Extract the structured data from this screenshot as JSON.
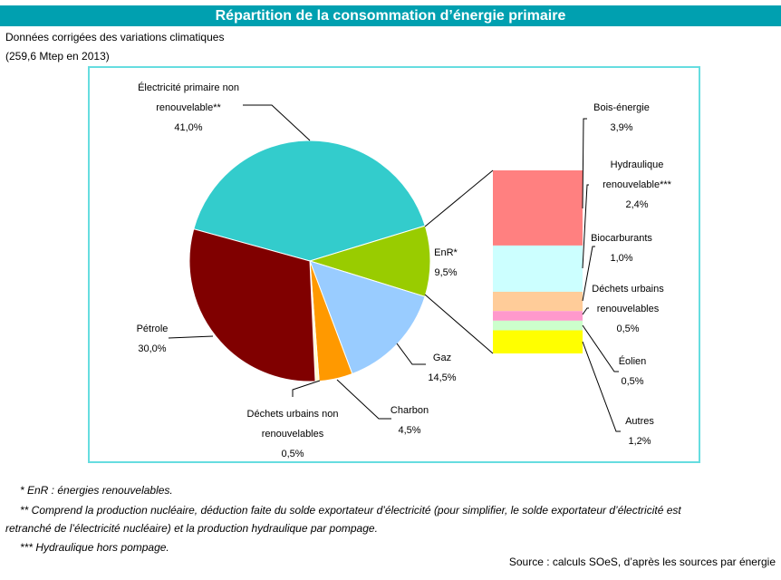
{
  "header": {
    "title": "Répartition de la consommation d’énergie primaire",
    "subtitle1": "Données corrigées des variations climatiques",
    "subtitle2": "(259,6 Mtep en 2013)"
  },
  "chart_data": [
    {
      "type": "pie",
      "unit": "%",
      "slices": [
        {
          "label": [
            "Électricité primaire non",
            "renouvelable**"
          ],
          "value_label": "41,0%",
          "value": 41.0,
          "color": "#33CCCC"
        },
        {
          "label": [
            "EnR*"
          ],
          "value_label": "9,5%",
          "value": 9.5,
          "color": "#99CC00"
        },
        {
          "label": [
            "Gaz"
          ],
          "value_label": "14,5%",
          "value": 14.5,
          "color": "#99CCFF"
        },
        {
          "label": [
            "Charbon"
          ],
          "value_label": "4,5%",
          "value": 4.5,
          "color": "#FF9900"
        },
        {
          "label": [
            "Déchets urbains non",
            "renouvelables"
          ],
          "value_label": "0,5%",
          "value": 0.5,
          "color": "#FFFFCC"
        },
        {
          "label": [
            "Pétrole"
          ],
          "value_label": "30,0%",
          "value": 30.0,
          "color": "#800000"
        }
      ]
    },
    {
      "type": "bar",
      "stacked": true,
      "unit": "%",
      "segments": [
        {
          "label": [
            "Bois-énergie"
          ],
          "value_label": "3,9%",
          "value": 3.9,
          "color": "#FF8080"
        },
        {
          "label": [
            "Hydraulique",
            "renouvelable***"
          ],
          "value_label": "2,4%",
          "value": 2.4,
          "color": "#CCFFFF"
        },
        {
          "label": [
            "Biocarburants"
          ],
          "value_label": "1,0%",
          "value": 1.0,
          "color": "#FFCC99"
        },
        {
          "label": [
            "Déchets urbains",
            "renouvelables"
          ],
          "value_label": "0,5%",
          "value": 0.5,
          "color": "#FF99CC"
        },
        {
          "label": [
            "Éolien"
          ],
          "value_label": "0,5%",
          "value": 0.5,
          "color": "#CCFFCC"
        },
        {
          "label": [
            "Autres"
          ],
          "value_label": "1,2%",
          "value": 1.2,
          "color": "#FFFF00"
        }
      ]
    }
  ],
  "footnotes": [
    "* EnR : énergies renouvelables.",
    "** Comprend la production nucléaire, déduction faite du solde exportateur d’électricité (pour simplifier, le solde exportateur d’électricité est",
    "retranché de l’électricité nucléaire) et la production hydraulique par pompage.",
    "*** Hydraulique hors pompage."
  ],
  "source": "Source : calculs SOeS, d’après les sources par énergie"
}
